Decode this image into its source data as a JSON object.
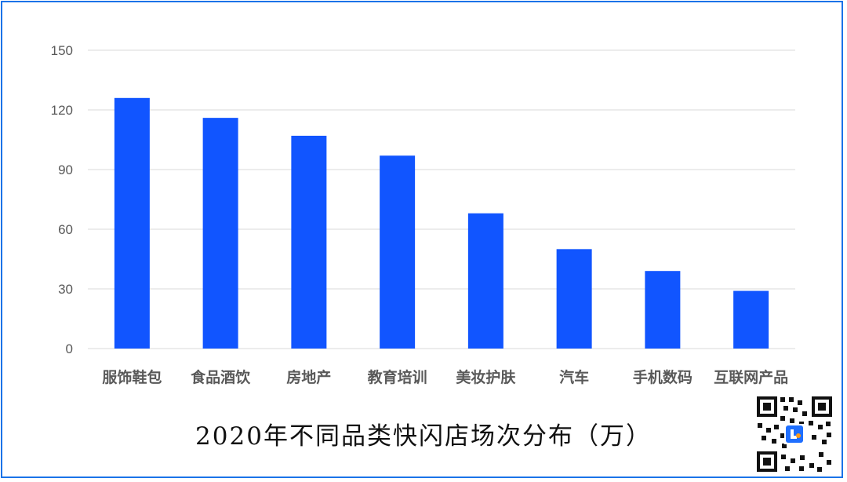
{
  "chart_data": {
    "type": "bar",
    "title": "2020年不同品类快闪店场次分布（万）",
    "categories": [
      "服饰鞋包",
      "食品酒饮",
      "房地产",
      "教育培训",
      "美妆护肤",
      "汽车",
      "手机数码",
      "互联网产品"
    ],
    "values": [
      126,
      116,
      107,
      97,
      68,
      50,
      39,
      29
    ],
    "xlabel": "",
    "ylabel": "",
    "ylim": [
      0,
      150
    ],
    "yticks": [
      "0",
      "30",
      "60",
      "90",
      "120",
      "150"
    ],
    "grid": true,
    "legend": "none",
    "bar_color": "#1155ff",
    "grid_color": "#d9d9d9",
    "tick_color": "#595959"
  },
  "qr_icon": "qr-code-icon"
}
